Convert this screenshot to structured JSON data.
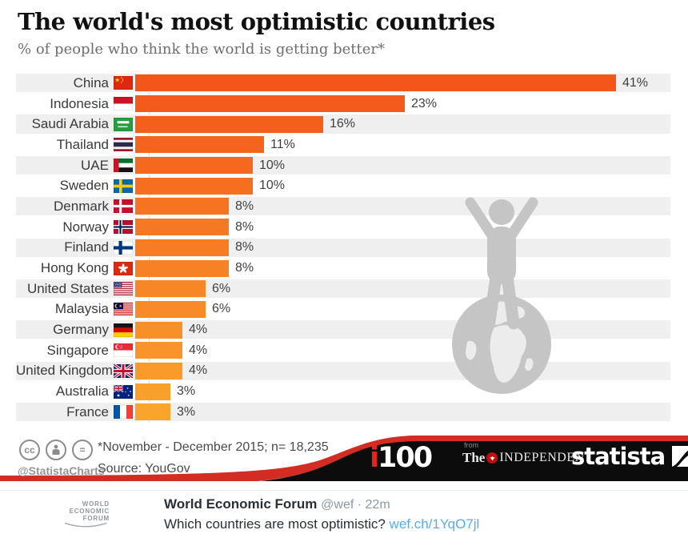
{
  "header": {
    "title": "The world's most optimistic countries",
    "subtitle": "% of people who think the world is getting better*"
  },
  "chart_data": {
    "type": "bar",
    "orientation": "horizontal",
    "title": "The world's most optimistic countries",
    "subtitle": "% of people who think the world is getting better*",
    "xlabel": "",
    "ylabel": "",
    "xlim": [
      0,
      41
    ],
    "grid": false,
    "unit": "%",
    "categories": [
      "China",
      "Indonesia",
      "Saudi Arabia",
      "Thailand",
      "UAE",
      "Sweden",
      "Denmark",
      "Norway",
      "Finland",
      "Hong Kong",
      "United States",
      "Malaysia",
      "Germany",
      "Singapore",
      "United Kingdom",
      "Australia",
      "France"
    ],
    "values": [
      41,
      23,
      16,
      11,
      10,
      10,
      8,
      8,
      8,
      8,
      6,
      6,
      4,
      4,
      4,
      3,
      3
    ],
    "value_labels": [
      "41%",
      "23%",
      "16%",
      "11%",
      "10%",
      "10%",
      "8%",
      "8%",
      "8%",
      "8%",
      "6%",
      "6%",
      "4%",
      "4%",
      "4%",
      "3%",
      "3%"
    ],
    "flags": [
      "china",
      "indonesia",
      "saudi-arabia",
      "thailand",
      "uae",
      "sweden",
      "denmark",
      "norway",
      "finland",
      "hong-kong",
      "united-states",
      "malaysia",
      "germany",
      "singapore",
      "united-kingdom",
      "australia",
      "france"
    ],
    "bar_colors": [
      "#f4551a",
      "#f45a1b",
      "#f55f1c",
      "#f5641e",
      "#f5691f",
      "#f66e20",
      "#f67321",
      "#f67822",
      "#f77c24",
      "#f78125",
      "#f78626",
      "#f88b27",
      "#f89029",
      "#f8952a",
      "#f99a2b",
      "#f99f2c",
      "#f9a42d"
    ]
  },
  "footer": {
    "footnote": "*November - December 2015; n= 18,235",
    "source": "Source: YouGov",
    "handle": "@StatistaCharts",
    "license_icons": [
      "cc-icon",
      "attribution-person-icon",
      "no-derivatives-equal-icon"
    ],
    "i100": {
      "i": "i",
      "number": "100"
    },
    "independent": {
      "from": "from",
      "the": "The",
      "name": "INDEPENDENT"
    },
    "statista_label": "statista"
  },
  "tweet": {
    "logo_lines": [
      "WORLD",
      "ECONOMIC",
      "FORUM"
    ],
    "author": "World Economic Forum",
    "handle": "@wef",
    "separator": "·",
    "time": "22m",
    "text": "Which countries are most optimistic? ",
    "link": "wef.ch/1YqO7jl"
  },
  "colors": {
    "row_band": "#efefef",
    "axis_line": "#dcdcdc",
    "accent_red": "#d32c23",
    "footer_black": "#0c0c0c",
    "silhouette_gray": "#c5c5c5",
    "continent_gray": "#ececec",
    "link_blue": "#55acee",
    "i100_red": "#e8231a"
  }
}
